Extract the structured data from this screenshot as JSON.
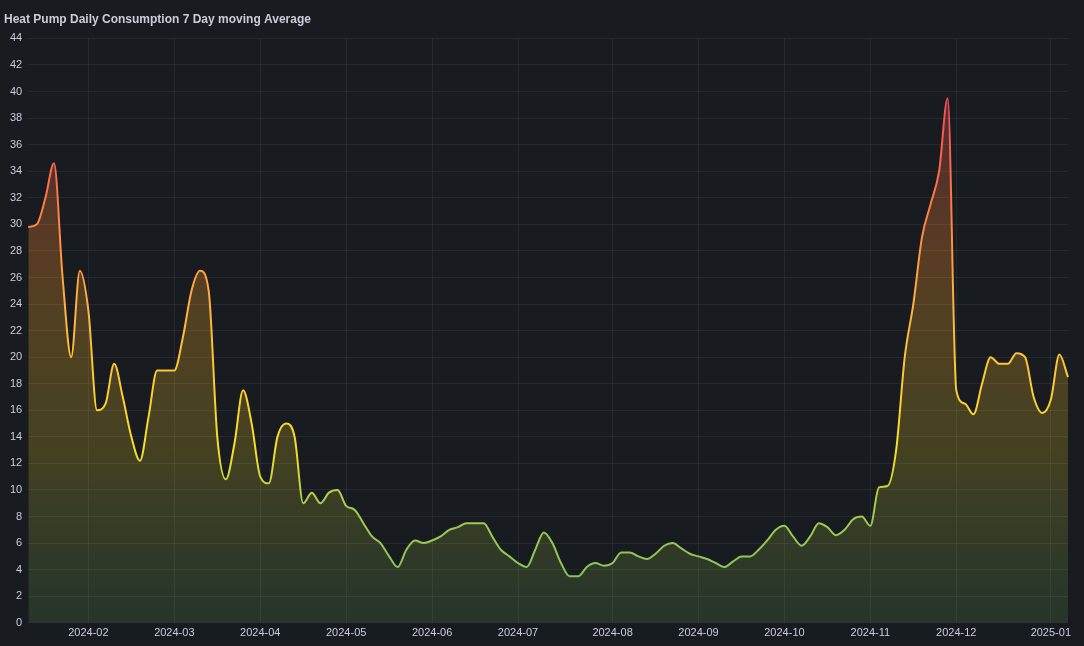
{
  "chart_data": {
    "type": "line",
    "title": "Heat Pump Daily Consumption 7 Day moving Average",
    "categories": [
      null,
      null,
      null,
      null,
      null,
      null,
      null,
      "2024-02",
      null,
      null,
      null,
      null,
      null,
      null,
      null,
      null,
      null,
      "2024-03",
      null,
      null,
      null,
      null,
      null,
      null,
      null,
      null,
      null,
      "2024-04",
      null,
      null,
      null,
      null,
      null,
      null,
      null,
      null,
      null,
      "2024-05",
      null,
      null,
      null,
      null,
      null,
      null,
      null,
      null,
      null,
      "2024-06",
      null,
      null,
      null,
      null,
      null,
      null,
      null,
      null,
      null,
      "2024-07",
      null,
      null,
      null,
      null,
      null,
      null,
      null,
      null,
      null,
      null,
      "2024-08",
      null,
      null,
      null,
      null,
      null,
      null,
      null,
      null,
      null,
      "2024-09",
      null,
      null,
      null,
      null,
      null,
      null,
      null,
      null,
      null,
      "2024-10",
      null,
      null,
      null,
      null,
      null,
      null,
      null,
      null,
      null,
      "2024-11",
      null,
      null,
      null,
      null,
      null,
      null,
      null,
      null,
      null,
      "2024-12",
      null,
      null,
      null,
      null,
      null,
      null,
      null,
      null,
      null,
      null,
      "2025-01",
      null,
      null
    ],
    "values": [
      29.8,
      30,
      32,
      34.6,
      26,
      20,
      26.5,
      23.5,
      16,
      16.5,
      19.5,
      17,
      14,
      12.2,
      15.5,
      19,
      19,
      19,
      21.5,
      25,
      26.5,
      25,
      14,
      10.8,
      13.5,
      17.5,
      15,
      11,
      10.5,
      14,
      15,
      14,
      9,
      9.8,
      9,
      9.8,
      10,
      8.8,
      8.5,
      7.5,
      6.5,
      6,
      5,
      4.2,
      5.5,
      6.2,
      6,
      6.2,
      6.5,
      7,
      7.2,
      7.5,
      7.5,
      7.5,
      6.5,
      5.5,
      5,
      4.5,
      4.2,
      5.5,
      6.8,
      6,
      4.5,
      3.5,
      3.5,
      4.2,
      4.5,
      4.3,
      4.5,
      5.3,
      5.3,
      5,
      4.8,
      5.2,
      5.8,
      6,
      5.6,
      5.2,
      5,
      4.8,
      4.5,
      4.2,
      4.6,
      5,
      5,
      5.5,
      6.2,
      7,
      7.3,
      6.5,
      5.8,
      6.5,
      7.5,
      7.2,
      6.6,
      7,
      7.8,
      8,
      7.3,
      10.2,
      10.3,
      13,
      20,
      24,
      29,
      31.5,
      34,
      39.5,
      17.5,
      16.5,
      15.7,
      18,
      20,
      19.5,
      19.5,
      20.3,
      20,
      17,
      15.8,
      16.8,
      20.2,
      18.5
    ],
    "color": "#fade2a",
    "ylim": [
      0,
      44
    ],
    "yticks": [
      0,
      2,
      4,
      6,
      8,
      10,
      12,
      14,
      16,
      18,
      20,
      22,
      24,
      26,
      28,
      30,
      32,
      34,
      36,
      38,
      40,
      42,
      44
    ],
    "grid": true
  }
}
